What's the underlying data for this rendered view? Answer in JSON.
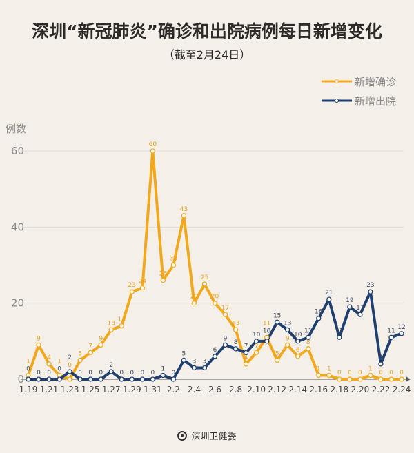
{
  "chart_data": {
    "type": "line",
    "title": "深圳“新冠肺炎”确诊和出院病例每日新增变化",
    "subtitle": "（截至2月24日）",
    "ylabel": "例数",
    "xlabel": "",
    "ylim": [
      0,
      60
    ],
    "yticks": [
      0,
      20,
      40,
      60
    ],
    "grid": true,
    "legend_position": "top-right",
    "x": [
      "1.19",
      "1.20",
      "1.21",
      "1.22",
      "1.23",
      "1.24",
      "1.25",
      "1.26",
      "1.27",
      "1.28",
      "1.29",
      "1.30",
      "1.31",
      "2.1",
      "2.2",
      "2.3",
      "2.4",
      "2.5",
      "2.6",
      "2.7",
      "2.8",
      "2.9",
      "2.10",
      "2.11",
      "2.12",
      "2.13",
      "2.14",
      "2.15",
      "2.16",
      "2.17",
      "2.18",
      "2.19",
      "2.20",
      "2.21",
      "2.22",
      "2.23",
      "2.24"
    ],
    "xticks": [
      "1.19",
      "1.21",
      "1.23",
      "1.25",
      "1.27",
      "1.29",
      "1.31",
      "2.2",
      "2.4",
      "2.6",
      "2.8",
      "2.10",
      "2.12",
      "2.14",
      "2.16",
      "2.18",
      "2.20",
      "2.22",
      "2.24"
    ],
    "series": [
      {
        "name": "新增确诊",
        "color": "#f2a81d",
        "values": [
          1,
          9,
          4,
          1,
          0,
          5,
          7,
          9,
          13,
          14,
          23,
          24,
          60,
          26,
          30,
          43,
          20,
          25,
          20,
          17,
          13,
          4,
          7,
          11,
          5,
          9,
          6,
          8,
          1,
          1,
          0,
          0,
          0,
          1,
          0,
          0,
          0
        ]
      },
      {
        "name": "新增出院",
        "color": "#1f3f6e",
        "values": [
          0,
          0,
          0,
          0,
          2,
          0,
          0,
          0,
          2,
          0,
          0,
          0,
          0,
          1,
          0,
          5,
          3,
          3,
          6,
          9,
          8,
          7,
          10,
          10,
          15,
          13,
          10,
          11,
          16,
          21,
          11,
          19,
          17,
          23,
          4,
          11,
          12
        ]
      }
    ]
  },
  "footer": {
    "source": "深圳卫健委"
  }
}
